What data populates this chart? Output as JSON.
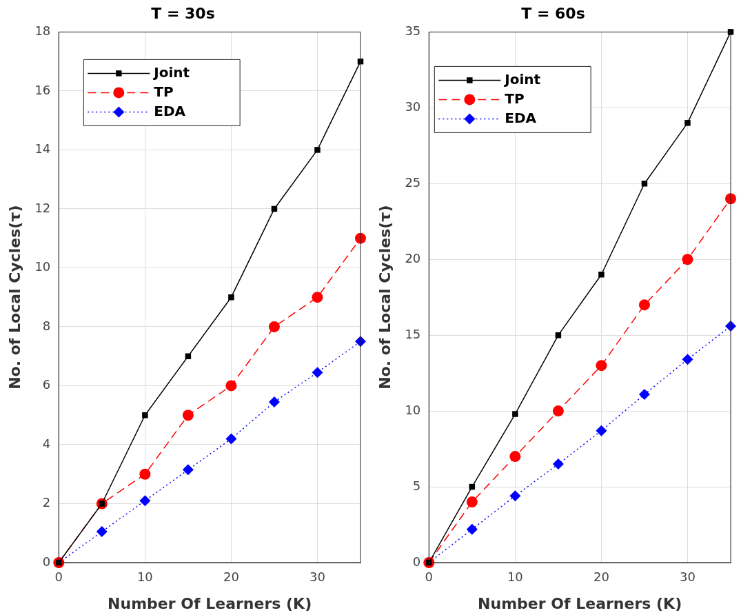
{
  "chart_data": [
    {
      "type": "line",
      "title": "T = 30s",
      "xlabel": "Number Of Learners (K)",
      "ylabel": "No. of Local Cycles(τ)",
      "x": [
        0,
        5,
        10,
        15,
        20,
        25,
        30,
        35
      ],
      "xlim": [
        0,
        35
      ],
      "xticks": [
        0,
        10,
        20,
        30
      ],
      "ylim": [
        0,
        18
      ],
      "yticks": [
        0,
        2,
        4,
        6,
        8,
        10,
        12,
        14,
        16,
        18
      ],
      "grid": true,
      "legend": "top left",
      "series": [
        {
          "name": "Joint",
          "color": "#000000",
          "marker": "square",
          "line_style": "solid",
          "values": [
            0,
            2,
            5,
            7,
            9,
            12,
            14,
            17
          ]
        },
        {
          "name": "TP",
          "color": "#ff0000",
          "marker": "circle",
          "line_style": "dashed",
          "values": [
            0,
            2,
            3,
            5,
            6,
            8,
            9,
            11
          ]
        },
        {
          "name": "EDA",
          "color": "#0000ff",
          "marker": "diamond",
          "line_style": "dotted",
          "values": [
            0,
            1.05,
            2.1,
            3.15,
            4.2,
            5.45,
            6.45,
            7.5
          ]
        }
      ]
    },
    {
      "type": "line",
      "title": "T = 60s",
      "xlabel": "Number Of Learners (K)",
      "ylabel": "No. of Local Cycles(τ)",
      "x": [
        0,
        5,
        10,
        15,
        20,
        25,
        30,
        35
      ],
      "xlim": [
        0,
        35
      ],
      "xticks": [
        0,
        10,
        20,
        30
      ],
      "ylim": [
        0,
        35
      ],
      "yticks": [
        0,
        5,
        10,
        15,
        20,
        25,
        30,
        35
      ],
      "grid": true,
      "legend": "top left",
      "series": [
        {
          "name": "Joint",
          "color": "#000000",
          "marker": "square",
          "line_style": "solid",
          "values": [
            0,
            5,
            9.8,
            15,
            19,
            25,
            29,
            35
          ]
        },
        {
          "name": "TP",
          "color": "#ff0000",
          "marker": "circle",
          "line_style": "dashed",
          "values": [
            0,
            4,
            7,
            10,
            13,
            17,
            20,
            24
          ]
        },
        {
          "name": "EDA",
          "color": "#0000ff",
          "marker": "diamond",
          "line_style": "dotted",
          "values": [
            0,
            2.2,
            4.4,
            6.5,
            8.7,
            11.1,
            13.4,
            15.6
          ]
        }
      ]
    }
  ]
}
